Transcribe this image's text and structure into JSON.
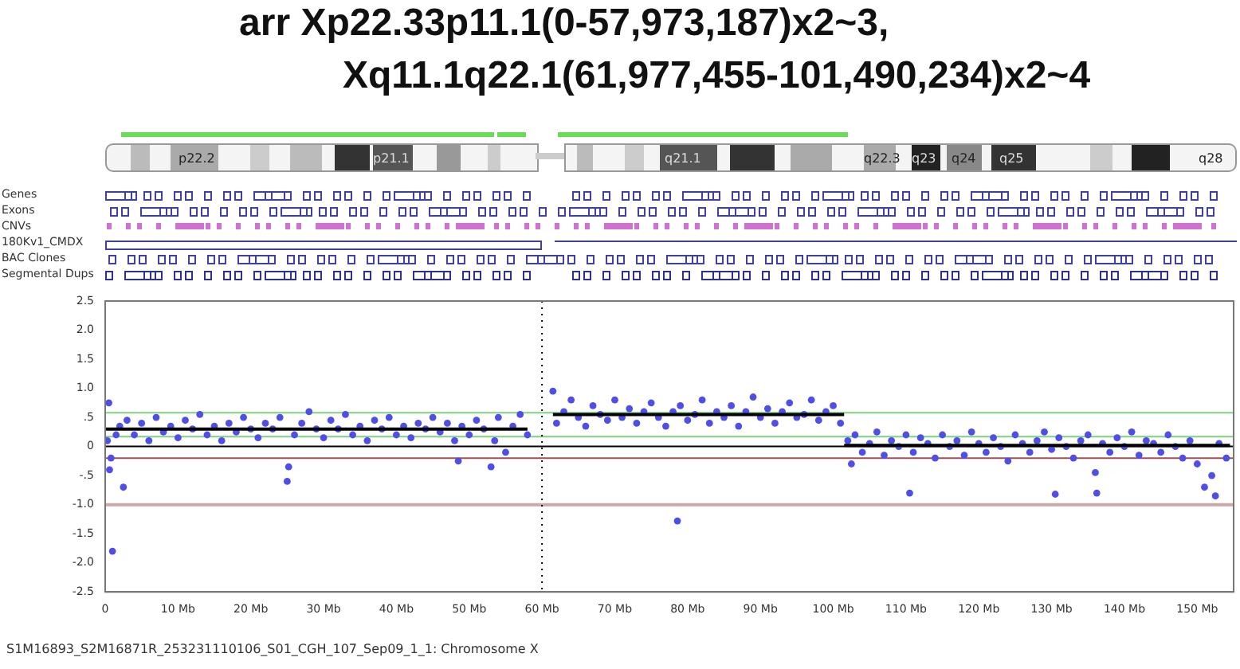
{
  "chart_data": {
    "type": "scatter",
    "title": "arr Xp22.33p11.1(0-57,973,187)x2~3,\nXq11.1q22.1(61,977,455-101,490,234)x2~4",
    "annotations": [
      "p22.2",
      "p21.1",
      "q21.1",
      "q22.3",
      "q23",
      "q24",
      "q25",
      "q28",
      "Genes",
      "Exons",
      "CNVs",
      "180Kv1_CMDX",
      "BAC Clones",
      "Segmental Dups",
      "S1M16893_S2M16871R_253231110106_S01_CGH_107_Sep09_1_1: Chromosome X"
    ],
    "xlim": [
      0,
      155
    ],
    "xticks": [
      {
        "value": 0,
        "label": "0"
      },
      {
        "value": 10,
        "label": "10 Mb"
      },
      {
        "value": 20,
        "label": "20 Mb"
      },
      {
        "value": 30,
        "label": "30 Mb"
      },
      {
        "value": 40,
        "label": "40 Mb"
      },
      {
        "value": 50,
        "label": "50 Mb"
      },
      {
        "value": 60,
        "label": "60 Mb"
      },
      {
        "value": 70,
        "label": "70 Mb"
      },
      {
        "value": 80,
        "label": "80 Mb"
      },
      {
        "value": 90,
        "label": "90 Mb"
      },
      {
        "value": 100,
        "label": "100 Mb"
      },
      {
        "value": 110,
        "label": "110 Mb"
      },
      {
        "value": 120,
        "label": "120 Mb"
      },
      {
        "value": 130,
        "label": "130 Mb"
      },
      {
        "value": 140,
        "label": "140 Mb"
      },
      {
        "value": 150,
        "label": "150 Mb"
      }
    ],
    "ylim": [
      -2.5,
      2.5
    ],
    "yticks": [
      {
        "value": 2.5,
        "label": "2.5"
      },
      {
        "value": 2,
        "label": "2.0"
      },
      {
        "value": 1.5,
        "label": "1.5"
      },
      {
        "value": 1,
        "label": "1.0"
      },
      {
        "value": 0.5,
        "label": ".5"
      },
      {
        "value": 0,
        "label": "0"
      },
      {
        "value": -0.5,
        "label": "-.5"
      },
      {
        "value": -1,
        "label": "-1.0"
      },
      {
        "value": -1.5,
        "label": "-1.5"
      },
      {
        "value": -2,
        "label": "-2.0"
      },
      {
        "value": -2.5,
        "label": "-2.5"
      }
    ],
    "grid": false,
    "legend": false,
    "ref_lines": [
      {
        "axis": "y",
        "value": 0,
        "color": "#000000"
      },
      {
        "axis": "y",
        "value": 0.58,
        "color": "#80d080"
      },
      {
        "axis": "y",
        "value": 0.17,
        "color": "#80d080"
      },
      {
        "axis": "y",
        "value": -0.2,
        "color": "#a05050"
      },
      {
        "axis": "y",
        "value": -1,
        "color": "#c8a8a8"
      },
      {
        "axis": "x",
        "value": 60,
        "color": "#000000",
        "line_style": "dotted"
      }
    ],
    "series": [
      {
        "marker": "circle",
        "color": "#4f4fe8",
        "x": [
          0.3,
          0.5,
          0.6,
          0.8,
          1,
          1.5,
          2,
          2.5,
          3,
          4,
          5,
          6,
          7,
          8,
          9,
          10,
          11,
          12,
          13,
          14,
          15,
          16,
          17,
          18,
          19,
          20,
          21,
          22,
          23,
          24,
          25,
          25.2,
          26,
          27,
          28,
          29,
          30,
          31,
          32,
          33,
          34,
          35,
          36,
          37,
          38,
          39,
          40,
          41,
          42,
          43,
          44,
          45,
          46,
          47,
          48,
          48.5,
          49,
          50,
          51,
          52,
          53,
          53.5,
          54,
          55,
          56,
          57,
          58,
          61.5,
          62,
          63,
          64,
          65,
          66,
          67,
          68,
          69,
          70,
          71,
          72,
          73,
          74,
          75,
          76,
          77,
          78,
          78.6,
          79,
          80,
          81,
          82,
          83,
          84,
          85,
          86,
          87,
          88,
          89,
          90,
          91,
          92,
          93,
          94,
          95,
          96,
          97,
          98,
          99,
          100,
          101,
          102,
          102.5,
          103,
          104,
          105,
          106,
          107,
          108,
          109,
          110,
          110.5,
          111,
          112,
          113,
          114,
          115,
          116,
          117,
          118,
          119,
          120,
          121,
          122,
          123,
          124,
          125,
          126,
          127,
          128,
          129,
          130,
          130.5,
          131,
          132,
          133,
          134,
          135,
          136,
          136.2,
          137,
          138,
          139,
          140,
          141,
          142,
          143,
          144,
          145,
          146,
          147,
          148,
          149,
          150,
          151,
          152,
          152.5,
          153,
          154
        ],
        "values": [
          0.1,
          0.75,
          -0.4,
          -0.2,
          -1.8,
          0.2,
          0.35,
          -0.7,
          0.45,
          0.2,
          0.4,
          0.1,
          0.5,
          0.25,
          0.35,
          0.15,
          0.45,
          0.3,
          0.55,
          0.2,
          0.35,
          0.1,
          0.4,
          0.25,
          0.5,
          0.3,
          0.15,
          0.4,
          0.3,
          0.5,
          -0.6,
          -0.35,
          0.2,
          0.4,
          0.6,
          0.3,
          0.15,
          0.45,
          0.3,
          0.55,
          0.2,
          0.35,
          0.1,
          0.45,
          0.3,
          0.5,
          0.2,
          0.35,
          0.15,
          0.4,
          0.3,
          0.5,
          0.25,
          0.4,
          0.1,
          -0.25,
          0.35,
          0.2,
          0.45,
          0.3,
          -0.35,
          0.1,
          0.5,
          -0.1,
          0.35,
          0.55,
          0.2,
          0.95,
          0.4,
          0.6,
          0.8,
          0.5,
          0.35,
          0.7,
          0.55,
          0.45,
          0.8,
          0.5,
          0.65,
          0.4,
          0.6,
          0.75,
          0.5,
          0.35,
          0.6,
          -1.28,
          0.7,
          0.45,
          0.55,
          0.8,
          0.4,
          0.6,
          0.5,
          0.7,
          0.35,
          0.6,
          0.85,
          0.5,
          0.65,
          0.4,
          0.6,
          0.75,
          0.5,
          0.55,
          0.8,
          0.45,
          0.6,
          0.7,
          0.4,
          0.1,
          -0.3,
          0.2,
          -0.1,
          0.05,
          0.25,
          -0.15,
          0.1,
          0,
          0.2,
          -0.8,
          -0.1,
          0.15,
          0.05,
          -0.2,
          0.2,
          0,
          0.1,
          -0.15,
          0.25,
          0.05,
          -0.1,
          0.15,
          0,
          -0.25,
          0.2,
          0.05,
          -0.1,
          0.1,
          0.25,
          -0.05,
          -0.82,
          0.15,
          0,
          -0.2,
          0.1,
          0.2,
          -0.45,
          -0.8,
          0.05,
          -0.1,
          0.15,
          0,
          0.25,
          -0.15,
          0.1,
          0.05,
          -0.1,
          0.2,
          0,
          -0.2,
          0.1,
          -0.3,
          -0.7,
          -0.5,
          -0.85,
          0.05,
          -0.2
        ]
      },
      {
        "type": "line",
        "marker": "none",
        "color": "#000000",
        "x": [
          0,
          58
        ],
        "values": [
          0.3,
          0.3
        ]
      },
      {
        "type": "line",
        "marker": "none",
        "color": "#000000",
        "x": [
          61.5,
          101.5
        ],
        "values": [
          0.55,
          0.55
        ]
      },
      {
        "type": "line",
        "marker": "none",
        "color": "#000000",
        "x": [
          101.5,
          154.5
        ],
        "values": [
          0.02,
          0.02
        ]
      }
    ]
  }
}
